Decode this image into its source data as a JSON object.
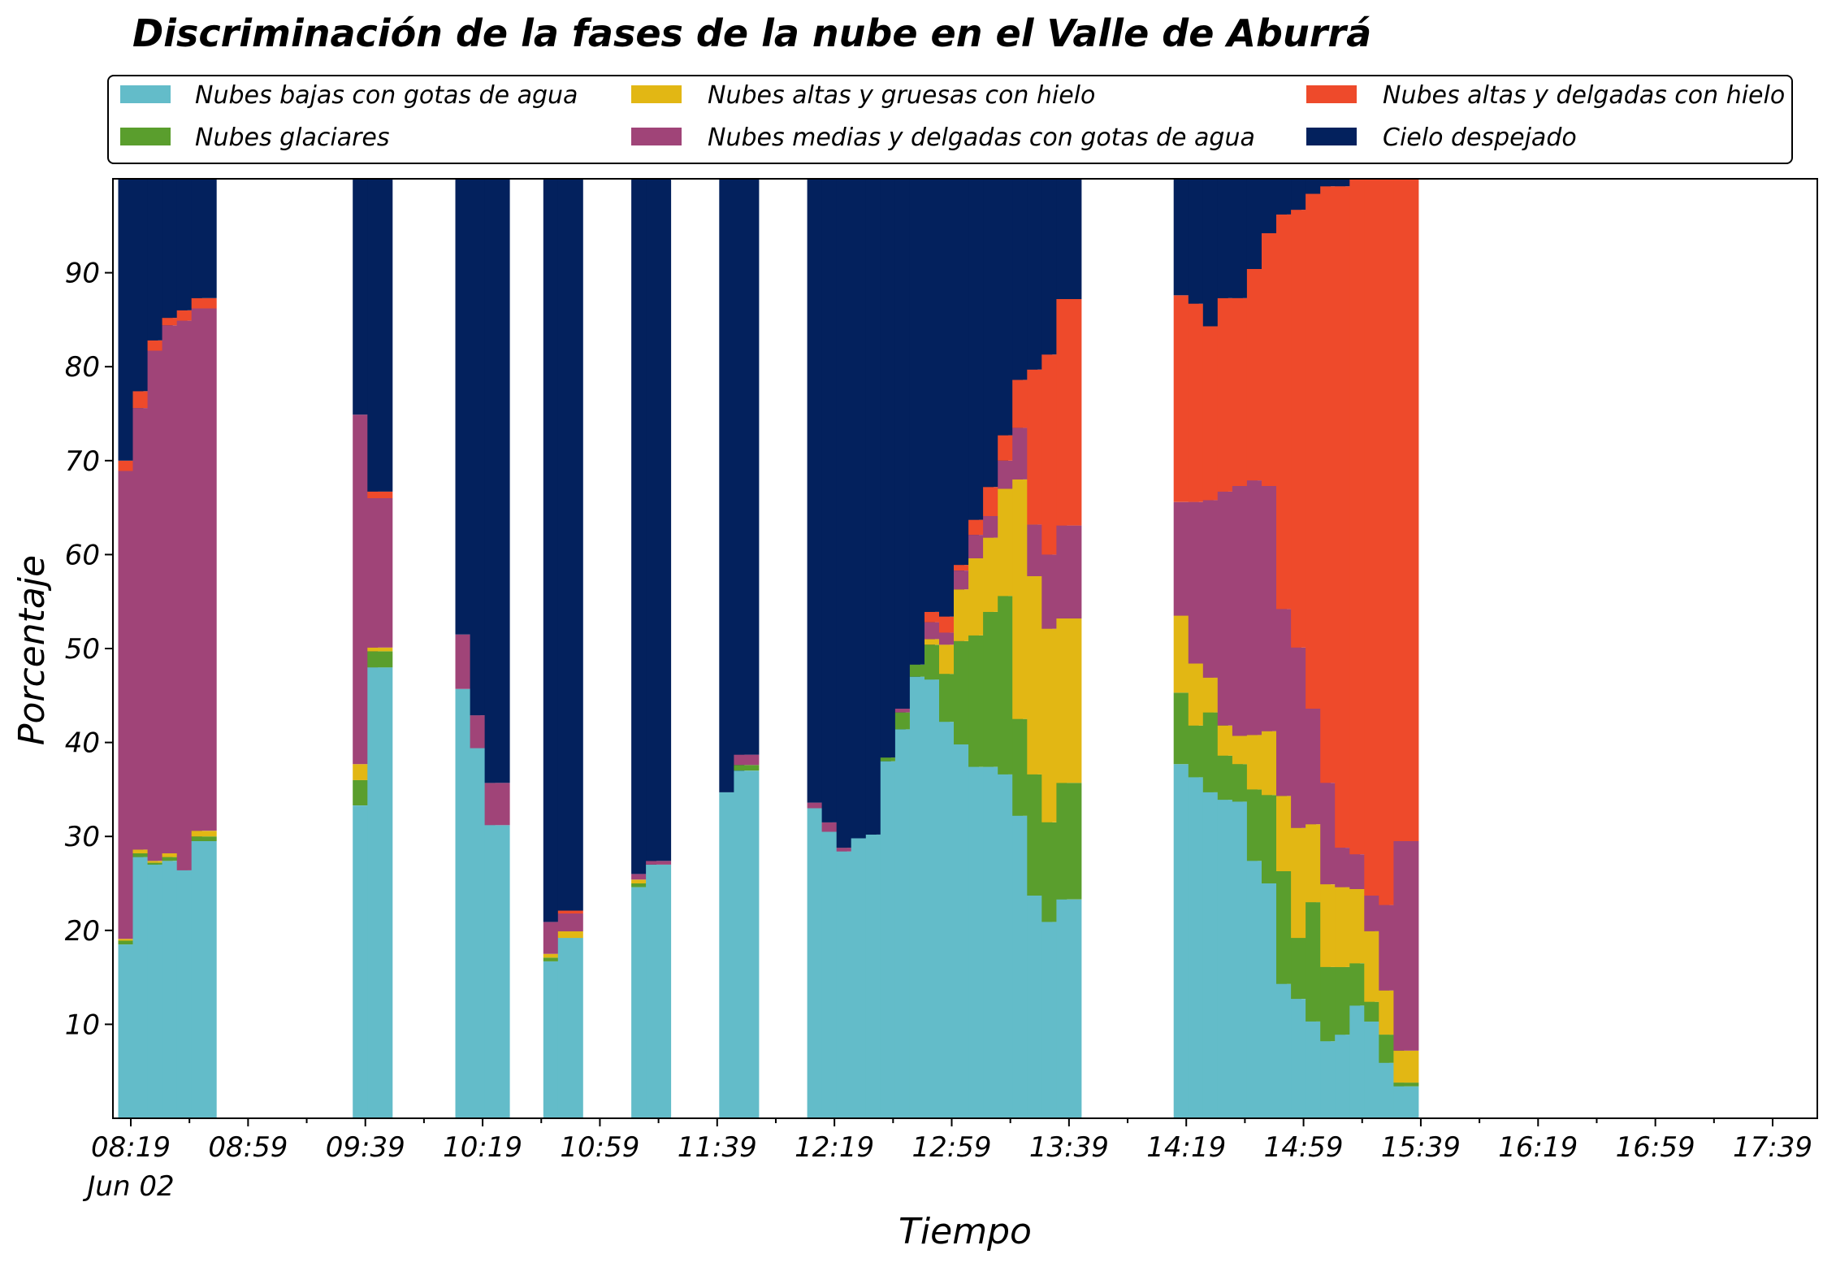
{
  "chart_data": {
    "type": "bar",
    "stacked": true,
    "title": "Discriminación de la fases de la nube en el Valle de Aburrá",
    "xlabel": "Tiempo",
    "ylabel": "Porcentaje",
    "ylim": [
      0,
      100
    ],
    "yticks": [
      10,
      20,
      30,
      40,
      50,
      60,
      70,
      80,
      90
    ],
    "xticks": [
      "08:19",
      "08:59",
      "09:39",
      "10:19",
      "10:59",
      "11:39",
      "12:19",
      "12:59",
      "13:39",
      "14:19",
      "14:59",
      "15:39",
      "16:19",
      "16:59",
      "17:39"
    ],
    "xtick_sublabel": "Jun 02",
    "legend_position": "top",
    "colors": {
      "baja": "#63bcc9",
      "glaciar": "#5a9e2d",
      "alta_gruesa": "#e2b714",
      "media": "#a04478",
      "alta_delgada": "#ee4a2b",
      "despejado": "#03215d"
    },
    "legend": [
      {
        "key": "baja",
        "label": "Nubes bajas con gotas de agua"
      },
      {
        "key": "alta_gruesa",
        "label": "Nubes altas y gruesas con hielo"
      },
      {
        "key": "alta_delgada",
        "label": "Nubes altas y delgadas con hielo"
      },
      {
        "key": "glaciar",
        "label": "Nubes glaciares"
      },
      {
        "key": "media",
        "label": "Nubes medias y delgadas con gotas de agua"
      },
      {
        "key": "despejado",
        "label": "Cielo despejado"
      }
    ],
    "series_order": [
      "baja",
      "glaciar",
      "alta_gruesa",
      "media",
      "alta_delgada",
      "despejado"
    ],
    "bars": [
      {
        "time": "08:19",
        "baja": 18.5,
        "glaciar": 0.4,
        "alta_gruesa": 0.2,
        "media": 49.8,
        "alta_delgada": 1.1,
        "despejado": 30.0
      },
      {
        "time": "08:24",
        "baja": 27.8,
        "glaciar": 0.4,
        "alta_gruesa": 0.4,
        "media": 47.0,
        "alta_delgada": 1.8,
        "despejado": 22.6
      },
      {
        "time": "08:29",
        "baja": 27.0,
        "glaciar": 0.2,
        "alta_gruesa": 0.2,
        "media": 54.3,
        "alta_delgada": 1.1,
        "despejado": 17.2
      },
      {
        "time": "08:34",
        "baja": 27.4,
        "glaciar": 0.4,
        "alta_gruesa": 0.4,
        "media": 56.2,
        "alta_delgada": 0.8,
        "despejado": 14.8
      },
      {
        "time": "08:39",
        "baja": 26.4,
        "glaciar": 0.0,
        "alta_gruesa": 0.0,
        "media": 58.5,
        "alta_delgada": 1.1,
        "despejado": 14.0
      },
      {
        "time": "08:44",
        "baja": 29.5,
        "glaciar": 0.5,
        "alta_gruesa": 0.6,
        "media": 55.6,
        "alta_delgada": 1.1,
        "despejado": 12.7
      },
      {
        "time": "09:39",
        "baja": 33.3,
        "glaciar": 2.7,
        "alta_gruesa": 1.7,
        "media": 37.2,
        "alta_delgada": 0.0,
        "despejado": 25.1
      },
      {
        "time": "09:44",
        "baja": 48.0,
        "glaciar": 1.7,
        "alta_gruesa": 0.4,
        "media": 15.9,
        "alta_delgada": 0.7,
        "despejado": 33.3
      },
      {
        "time": "10:14",
        "baja": 45.7,
        "glaciar": 0.0,
        "alta_gruesa": 0.0,
        "media": 5.8,
        "alta_delgada": 0.0,
        "despejado": 48.5
      },
      {
        "time": "10:19",
        "baja": 39.4,
        "glaciar": 0.0,
        "alta_gruesa": 0.0,
        "media": 3.5,
        "alta_delgada": 0.0,
        "despejado": 57.1
      },
      {
        "time": "10:24",
        "baja": 31.2,
        "glaciar": 0.0,
        "alta_gruesa": 0.0,
        "media": 4.5,
        "alta_delgada": 0.0,
        "despejado": 64.3
      },
      {
        "time": "10:44",
        "baja": 16.7,
        "glaciar": 0.4,
        "alta_gruesa": 0.4,
        "media": 3.4,
        "alta_delgada": 0.0,
        "despejado": 79.1
      },
      {
        "time": "10:49",
        "baja": 19.2,
        "glaciar": 0.0,
        "alta_gruesa": 0.7,
        "media": 1.9,
        "alta_delgada": 0.3,
        "despejado": 77.9
      },
      {
        "time": "11:14",
        "baja": 24.6,
        "glaciar": 0.4,
        "alta_gruesa": 0.4,
        "media": 0.6,
        "alta_delgada": 0.0,
        "despejado": 74.0
      },
      {
        "time": "11:19",
        "baja": 27.0,
        "glaciar": 0.0,
        "alta_gruesa": 0.0,
        "media": 0.4,
        "alta_delgada": 0.0,
        "despejado": 72.6
      },
      {
        "time": "11:44",
        "baja": 34.7,
        "glaciar": 0.0,
        "alta_gruesa": 0.0,
        "media": 0.0,
        "alta_delgada": 0.0,
        "despejado": 65.3
      },
      {
        "time": "11:49",
        "baja": 37.0,
        "glaciar": 0.6,
        "alta_gruesa": 0.0,
        "media": 1.1,
        "alta_delgada": 0.0,
        "despejado": 61.3
      },
      {
        "time": "12:14",
        "baja": 33.0,
        "glaciar": 0.0,
        "alta_gruesa": 0.0,
        "media": 0.6,
        "alta_delgada": 0.0,
        "despejado": 66.4
      },
      {
        "time": "12:19",
        "baja": 30.5,
        "glaciar": 0.0,
        "alta_gruesa": 0.0,
        "media": 1.0,
        "alta_delgada": 0.0,
        "despejado": 68.5
      },
      {
        "time": "12:24",
        "baja": 28.4,
        "glaciar": 0.0,
        "alta_gruesa": 0.0,
        "media": 0.4,
        "alta_delgada": 0.0,
        "despejado": 71.2
      },
      {
        "time": "12:29",
        "baja": 29.8,
        "glaciar": 0.0,
        "alta_gruesa": 0.0,
        "media": 0.0,
        "alta_delgada": 0.0,
        "despejado": 70.2
      },
      {
        "time": "12:34",
        "baja": 30.2,
        "glaciar": 0.0,
        "alta_gruesa": 0.0,
        "media": 0.0,
        "alta_delgada": 0.0,
        "despejado": 69.8
      },
      {
        "time": "12:39",
        "baja": 38.0,
        "glaciar": 0.4,
        "alta_gruesa": 0.0,
        "media": 0.0,
        "alta_delgada": 0.0,
        "despejado": 61.6
      },
      {
        "time": "12:44",
        "baja": 41.4,
        "glaciar": 1.8,
        "alta_gruesa": 0.0,
        "media": 0.4,
        "alta_delgada": 0.0,
        "despejado": 56.4
      },
      {
        "time": "12:49",
        "baja": 47.0,
        "glaciar": 1.3,
        "alta_gruesa": 0.0,
        "media": 0.0,
        "alta_delgada": 0.0,
        "despejado": 51.7
      },
      {
        "time": "12:54",
        "baja": 46.7,
        "glaciar": 3.7,
        "alta_gruesa": 0.6,
        "media": 1.8,
        "alta_delgada": 1.1,
        "despejado": 46.1
      },
      {
        "time": "12:59",
        "baja": 42.2,
        "glaciar": 5.1,
        "alta_gruesa": 3.1,
        "media": 1.3,
        "alta_delgada": 1.7,
        "despejado": 46.6
      },
      {
        "time": "13:04",
        "baja": 39.8,
        "glaciar": 11.0,
        "alta_gruesa": 5.5,
        "media": 2.0,
        "alta_delgada": 0.6,
        "despejado": 41.1
      },
      {
        "time": "13:09",
        "baja": 37.4,
        "glaciar": 14.0,
        "alta_gruesa": 8.2,
        "media": 2.5,
        "alta_delgada": 1.6,
        "despejado": 36.3
      },
      {
        "time": "13:14",
        "baja": 37.4,
        "glaciar": 16.5,
        "alta_gruesa": 7.9,
        "media": 2.3,
        "alta_delgada": 3.1,
        "despejado": 32.8
      },
      {
        "time": "13:19",
        "baja": 36.6,
        "glaciar": 19.0,
        "alta_gruesa": 11.4,
        "media": 3.0,
        "alta_delgada": 2.7,
        "despejado": 27.3
      },
      {
        "time": "13:24",
        "baja": 32.2,
        "glaciar": 10.3,
        "alta_gruesa": 25.5,
        "media": 5.5,
        "alta_delgada": 5.1,
        "despejado": 21.4
      },
      {
        "time": "13:29",
        "baja": 23.7,
        "glaciar": 12.9,
        "alta_gruesa": 21.1,
        "media": 5.5,
        "alta_delgada": 16.5,
        "despejado": 20.3
      },
      {
        "time": "13:34",
        "baja": 20.9,
        "glaciar": 10.6,
        "alta_gruesa": 20.6,
        "media": 7.9,
        "alta_delgada": 21.3,
        "despejado": 18.7
      },
      {
        "time": "13:39",
        "baja": 23.3,
        "glaciar": 12.4,
        "alta_gruesa": 17.5,
        "media": 9.9,
        "alta_delgada": 24.1,
        "despejado": 12.8
      },
      {
        "time": "14:19",
        "baja": 37.7,
        "glaciar": 7.6,
        "alta_gruesa": 8.2,
        "media": 12.1,
        "alta_delgada": 22.0,
        "despejado": 12.4
      },
      {
        "time": "14:24",
        "baja": 36.3,
        "glaciar": 5.5,
        "alta_gruesa": 6.6,
        "media": 17.2,
        "alta_delgada": 21.1,
        "despejado": 13.3
      },
      {
        "time": "14:29",
        "baja": 34.7,
        "glaciar": 8.5,
        "alta_gruesa": 3.7,
        "media": 18.9,
        "alta_delgada": 18.5,
        "despejado": 15.7
      },
      {
        "time": "14:34",
        "baja": 33.9,
        "glaciar": 4.7,
        "alta_gruesa": 3.2,
        "media": 24.9,
        "alta_delgada": 20.6,
        "despejado": 12.7
      },
      {
        "time": "14:39",
        "baja": 33.7,
        "glaciar": 4.0,
        "alta_gruesa": 3.0,
        "media": 26.6,
        "alta_delgada": 20.0,
        "despejado": 12.7
      },
      {
        "time": "14:44",
        "baja": 27.4,
        "glaciar": 7.6,
        "alta_gruesa": 5.8,
        "media": 27.1,
        "alta_delgada": 22.5,
        "despejado": 9.6
      },
      {
        "time": "14:49",
        "baja": 25.0,
        "glaciar": 9.4,
        "alta_gruesa": 6.8,
        "media": 26.1,
        "alta_delgada": 26.9,
        "despejado": 5.8
      },
      {
        "time": "14:54",
        "baja": 14.3,
        "glaciar": 12.0,
        "alta_gruesa": 8.0,
        "media": 19.9,
        "alta_delgada": 42.0,
        "despejado": 3.8
      },
      {
        "time": "14:59",
        "baja": 12.7,
        "glaciar": 6.5,
        "alta_gruesa": 11.7,
        "media": 19.2,
        "alta_delgada": 46.6,
        "despejado": 3.3
      },
      {
        "time": "15:04",
        "baja": 10.3,
        "glaciar": 12.7,
        "alta_gruesa": 8.3,
        "media": 12.3,
        "alta_delgada": 54.8,
        "despejado": 1.6
      },
      {
        "time": "15:09",
        "baja": 8.2,
        "glaciar": 7.9,
        "alta_gruesa": 8.8,
        "media": 10.8,
        "alta_delgada": 63.5,
        "despejado": 0.8
      },
      {
        "time": "15:14",
        "baja": 8.9,
        "glaciar": 7.2,
        "alta_gruesa": 8.5,
        "media": 4.2,
        "alta_delgada": 70.4,
        "despejado": 0.8
      },
      {
        "time": "15:19",
        "baja": 12.0,
        "glaciar": 4.5,
        "alta_gruesa": 7.9,
        "media": 3.7,
        "alta_delgada": 71.9,
        "despejado": 0.0
      },
      {
        "time": "15:24",
        "baja": 10.3,
        "glaciar": 2.1,
        "alta_gruesa": 7.5,
        "media": 3.8,
        "alta_delgada": 76.3,
        "despejado": 0.0
      },
      {
        "time": "15:29",
        "baja": 5.9,
        "glaciar": 3.0,
        "alta_gruesa": 4.7,
        "media": 9.1,
        "alta_delgada": 77.3,
        "despejado": 0.0
      },
      {
        "time": "15:34",
        "baja": 3.4,
        "glaciar": 0.4,
        "alta_gruesa": 3.4,
        "media": 22.3,
        "alta_delgada": 70.5,
        "despejado": 0.0
      }
    ]
  }
}
